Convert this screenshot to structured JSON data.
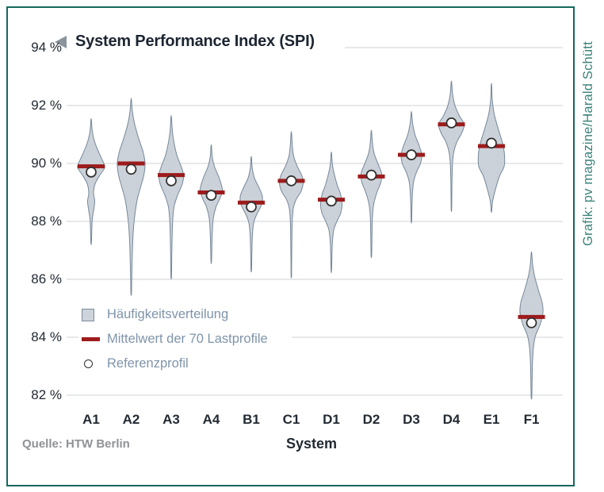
{
  "title": {
    "text": "System Performance Index (SPI)",
    "arrow": "left-triangle"
  },
  "source": "Quelle: HTW Berlin",
  "credit": "Grafik: pv magazine/Harald Schütt",
  "legend": {
    "items": [
      {
        "swatch": "distribution-swatch",
        "label": "Häufigkeitsverteilung"
      },
      {
        "swatch": "mean-line-swatch",
        "label": "Mittelwert der 70 Lastprofile"
      },
      {
        "swatch": "reference-circle-swatch",
        "label": "Referenzprofil"
      }
    ]
  },
  "colors": {
    "frame": "#15695e",
    "violin_fill": "#cdd3da",
    "violin_dot": "#bac2cc",
    "violin_stroke": "#76879a",
    "mean_bar": "#9e1b1b",
    "ref_fill": "#ffffff",
    "ref_stroke": "#2e2e2e",
    "grid": "#cdd2d6",
    "axis_text": "#222a33",
    "legend_text": "#7f94aa",
    "source_text": "#8f9296",
    "credit_text": "#3b837b"
  },
  "chart_data": {
    "type": "violin",
    "title": "System Performance Index (SPI)",
    "xlabel": "System",
    "y_unit": "%",
    "ylim": [
      81.5,
      94
    ],
    "yticks": [
      94,
      92,
      90,
      88,
      86,
      84,
      82
    ],
    "ytick_labels": [
      "94 %",
      "92 %",
      "90 %",
      "88 %",
      "86 %",
      "84 %",
      "82 %"
    ],
    "grid": true,
    "legend_position": "inside-lower-left",
    "categories": [
      "A1",
      "A2",
      "A3",
      "A4",
      "B1",
      "C1",
      "D1",
      "D2",
      "D3",
      "D4",
      "E1",
      "F1"
    ],
    "series": [
      {
        "name": "Mittelwert der 70 Lastprofile",
        "values": [
          89.9,
          90.0,
          89.6,
          89.0,
          88.65,
          89.4,
          88.75,
          89.55,
          90.3,
          91.35,
          90.6,
          84.7
        ]
      },
      {
        "name": "Referenzprofil",
        "values": [
          89.7,
          89.8,
          89.4,
          88.9,
          88.5,
          89.4,
          88.7,
          89.6,
          90.3,
          91.4,
          90.7,
          84.5
        ]
      }
    ],
    "violins": [
      {
        "category": "A1",
        "max": 91.5,
        "min": 87.25,
        "profile": [
          [
            91.5,
            0.3
          ],
          [
            91.1,
            1.5
          ],
          [
            90.7,
            5
          ],
          [
            90.3,
            11
          ],
          [
            90.0,
            16
          ],
          [
            89.85,
            17
          ],
          [
            89.6,
            11
          ],
          [
            89.3,
            5
          ],
          [
            89.0,
            3
          ],
          [
            88.7,
            4.5
          ],
          [
            88.45,
            3.5
          ],
          [
            88.1,
            1.5
          ],
          [
            87.7,
            0.8
          ],
          [
            87.25,
            0.3
          ]
        ]
      },
      {
        "category": "A2",
        "max": 92.2,
        "min": 85.5,
        "profile": [
          [
            92.2,
            0.3
          ],
          [
            91.8,
            1.5
          ],
          [
            91.4,
            4
          ],
          [
            90.9,
            9
          ],
          [
            90.4,
            15
          ],
          [
            90.0,
            17.5
          ],
          [
            89.6,
            16
          ],
          [
            89.2,
            12
          ],
          [
            88.8,
            8
          ],
          [
            88.3,
            5
          ],
          [
            87.8,
            3
          ],
          [
            87.2,
            1.8
          ],
          [
            86.5,
            1.1
          ],
          [
            85.9,
            0.6
          ],
          [
            85.5,
            0.3
          ]
        ]
      },
      {
        "category": "A3",
        "max": 91.6,
        "min": 86.05,
        "profile": [
          [
            91.6,
            0.3
          ],
          [
            91.2,
            1.2
          ],
          [
            90.8,
            3
          ],
          [
            90.3,
            7
          ],
          [
            89.9,
            12.5
          ],
          [
            89.6,
            15.5
          ],
          [
            89.3,
            14
          ],
          [
            88.9,
            8
          ],
          [
            88.5,
            3.5
          ],
          [
            88.0,
            1.8
          ],
          [
            87.4,
            1.1
          ],
          [
            86.8,
            0.7
          ],
          [
            86.3,
            0.5
          ],
          [
            86.05,
            0.3
          ]
        ]
      },
      {
        "category": "A4",
        "max": 90.6,
        "min": 86.6,
        "profile": [
          [
            90.6,
            0.3
          ],
          [
            90.25,
            1.2
          ],
          [
            89.9,
            4
          ],
          [
            89.5,
            10
          ],
          [
            89.1,
            14
          ],
          [
            88.8,
            11
          ],
          [
            88.5,
            6
          ],
          [
            88.1,
            2.5
          ],
          [
            87.6,
            1.3
          ],
          [
            87.1,
            0.8
          ],
          [
            86.6,
            0.3
          ]
        ]
      },
      {
        "category": "B1",
        "max": 90.2,
        "min": 86.3,
        "profile": [
          [
            90.2,
            0.3
          ],
          [
            89.85,
            1.2
          ],
          [
            89.5,
            4
          ],
          [
            89.15,
            10
          ],
          [
            88.85,
            14
          ],
          [
            88.55,
            12.5
          ],
          [
            88.25,
            7
          ],
          [
            87.95,
            3
          ],
          [
            87.55,
            1.5
          ],
          [
            87.1,
            0.9
          ],
          [
            86.7,
            0.6
          ],
          [
            86.3,
            0.3
          ]
        ]
      },
      {
        "category": "C1",
        "max": 91.05,
        "min": 86.1,
        "profile": [
          [
            91.05,
            0.3
          ],
          [
            90.65,
            1.2
          ],
          [
            90.25,
            3
          ],
          [
            89.9,
            7.5
          ],
          [
            89.6,
            13
          ],
          [
            89.35,
            15
          ],
          [
            89.05,
            12.5
          ],
          [
            88.75,
            6
          ],
          [
            88.45,
            2.5
          ],
          [
            88.0,
            1.2
          ],
          [
            87.5,
            0.8
          ],
          [
            87.0,
            0.6
          ],
          [
            86.5,
            0.4
          ],
          [
            86.1,
            0.3
          ]
        ]
      },
      {
        "category": "D1",
        "max": 90.35,
        "min": 86.3,
        "profile": [
          [
            90.35,
            0.3
          ],
          [
            90.0,
            1.2
          ],
          [
            89.65,
            3.5
          ],
          [
            89.25,
            7.5
          ],
          [
            88.95,
            11.5
          ],
          [
            88.6,
            13.5
          ],
          [
            88.3,
            12
          ],
          [
            88.0,
            7
          ],
          [
            87.7,
            3
          ],
          [
            87.3,
            1.4
          ],
          [
            86.9,
            0.8
          ],
          [
            86.3,
            0.3
          ]
        ]
      },
      {
        "category": "D2",
        "max": 91.1,
        "min": 86.8,
        "profile": [
          [
            91.1,
            0.3
          ],
          [
            90.75,
            1.2
          ],
          [
            90.35,
            3.5
          ],
          [
            89.95,
            9
          ],
          [
            89.65,
            13
          ],
          [
            89.35,
            12
          ],
          [
            89.0,
            7
          ],
          [
            88.6,
            3
          ],
          [
            88.2,
            1.4
          ],
          [
            87.7,
            0.9
          ],
          [
            87.2,
            0.6
          ],
          [
            86.8,
            0.3
          ]
        ]
      },
      {
        "category": "D3",
        "max": 91.75,
        "min": 88.0,
        "profile": [
          [
            91.75,
            0.3
          ],
          [
            91.4,
            1.5
          ],
          [
            91.0,
            4.5
          ],
          [
            90.6,
            10
          ],
          [
            90.3,
            13
          ],
          [
            90.0,
            11.5
          ],
          [
            89.7,
            6.5
          ],
          [
            89.4,
            3
          ],
          [
            89.0,
            1.4
          ],
          [
            88.5,
            0.7
          ],
          [
            88.0,
            0.3
          ]
        ]
      },
      {
        "category": "D4",
        "max": 92.8,
        "min": 88.4,
        "profile": [
          [
            92.8,
            0.3
          ],
          [
            92.4,
            1.5
          ],
          [
            92.0,
            4.5
          ],
          [
            91.65,
            10
          ],
          [
            91.35,
            16
          ],
          [
            91.05,
            13
          ],
          [
            90.75,
            7
          ],
          [
            90.4,
            3
          ],
          [
            90.0,
            1.4
          ],
          [
            89.4,
            0.7
          ],
          [
            88.9,
            0.5
          ],
          [
            88.4,
            0.3
          ]
        ]
      },
      {
        "category": "E1",
        "max": 92.7,
        "min": 88.35,
        "profile": [
          [
            92.7,
            0.3
          ],
          [
            92.2,
            1.0
          ],
          [
            91.7,
            3.5
          ],
          [
            91.2,
            8.5
          ],
          [
            90.7,
            14
          ],
          [
            90.3,
            16.5
          ],
          [
            89.9,
            16
          ],
          [
            89.55,
            10
          ],
          [
            89.1,
            5
          ],
          [
            88.7,
            1.5
          ],
          [
            88.35,
            0.3
          ]
        ]
      },
      {
        "category": "F1",
        "max": 86.9,
        "min": 81.9,
        "profile": [
          [
            86.9,
            0.3
          ],
          [
            86.5,
            1.5
          ],
          [
            86.1,
            4
          ],
          [
            85.6,
            9
          ],
          [
            85.2,
            13.5
          ],
          [
            84.85,
            14.5
          ],
          [
            84.45,
            11
          ],
          [
            84.05,
            5
          ],
          [
            83.65,
            2.5
          ],
          [
            83.2,
            1.4
          ],
          [
            82.7,
            0.9
          ],
          [
            82.2,
            0.6
          ],
          [
            81.9,
            0.3
          ]
        ]
      }
    ]
  }
}
